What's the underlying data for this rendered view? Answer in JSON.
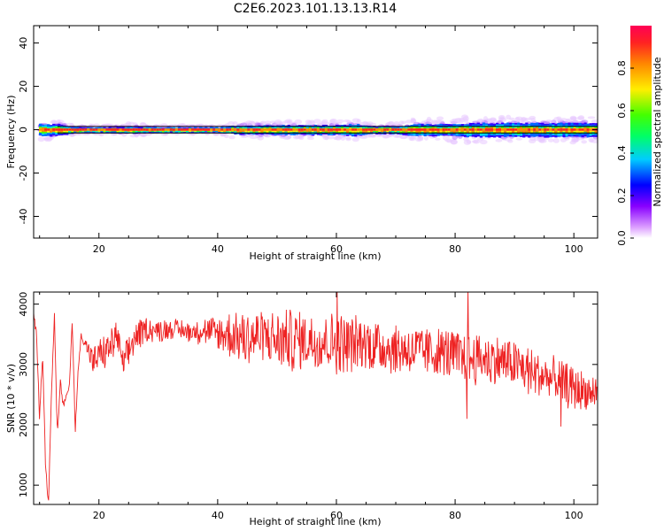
{
  "title": "C2E6.2023.101.13.13.R14",
  "colors": {
    "snr_line": "#ee2222",
    "frame": "#000000"
  },
  "chart_data": [
    {
      "type": "heatmap",
      "xlabel": "Height of straight line (km)",
      "ylabel": "Frequency (Hz)",
      "xlim": [
        9,
        104
      ],
      "ylim": [
        -50,
        48
      ],
      "x_ticks": [
        20,
        40,
        60,
        80,
        100
      ],
      "y_ticks": [
        -40,
        -20,
        0,
        20,
        40
      ],
      "x_tick_labels": [
        "20",
        "40",
        "60",
        "80",
        "100"
      ],
      "y_tick_labels": [
        "-40",
        "-20",
        "0",
        "20",
        "40"
      ],
      "colorbar": {
        "label": "Normalized spectral amplitude",
        "range": [
          0,
          1
        ],
        "ticks": [
          0.0,
          0.2,
          0.4,
          0.6,
          0.8
        ],
        "tick_labels": [
          "0.0",
          "0.2",
          "0.4",
          "0.6",
          "0.8"
        ],
        "colormap": "gist_rainbow_r"
      },
      "band": {
        "x": [
          10,
          13,
          16,
          20,
          25,
          30,
          35,
          40,
          43,
          46,
          50,
          53,
          56,
          60,
          63,
          66,
          70,
          73,
          76,
          80,
          83,
          86,
          90,
          93,
          96,
          100,
          104
        ],
        "half_width": [
          2.5,
          2.5,
          1.0,
          1.0,
          1.2,
          1.0,
          1.0,
          1.0,
          1.8,
          1.8,
          2.0,
          2.0,
          2.0,
          2.0,
          2.5,
          1.5,
          1.5,
          2.5,
          2.5,
          2.5,
          3.0,
          3.0,
          3.0,
          3.0,
          3.0,
          3.0,
          3.0
        ],
        "noise_half_width": [
          5,
          5,
          2,
          2,
          3,
          2,
          2,
          2,
          4,
          4,
          4,
          4,
          4,
          4,
          5,
          3,
          3,
          5,
          5,
          6,
          6,
          6,
          6,
          6,
          6,
          6,
          6
        ]
      },
      "lines": {
        "upper": 1.5,
        "lower": -1.5
      }
    },
    {
      "type": "line",
      "xlabel": "Height of straight line (km)",
      "ylabel": "SNR (10 * v/v)",
      "xlim": [
        9,
        104
      ],
      "ylim": [
        680,
        4200
      ],
      "x_ticks": [
        20,
        40,
        60,
        80,
        100
      ],
      "y_ticks": [
        1000,
        2000,
        3000,
        4000
      ],
      "x_tick_labels": [
        "20",
        "40",
        "60",
        "80",
        "100"
      ],
      "y_tick_labels": [
        "1000",
        "2000",
        "3000",
        "4000"
      ],
      "series": [
        {
          "x": [
            9.0,
            9.5,
            10.0,
            10.5,
            11.0,
            11.5,
            12.0,
            12.5,
            13.0,
            13.5,
            14.0,
            14.5,
            15.0,
            15.5,
            16.0,
            16.5,
            17.0,
            18.0,
            19.0,
            20.0,
            21.0,
            22.0,
            23.0,
            24.0,
            25.0,
            26.0,
            27.0,
            28.0,
            30.0,
            32.0,
            35.0,
            38.0,
            40.0,
            42.0,
            45.0,
            48.0,
            50.0,
            52.0,
            55.0,
            58.0,
            60.0,
            62.0,
            65.0,
            68.0,
            70.0,
            72.0,
            75.0,
            78.0,
            80.0,
            82.0,
            85.0,
            88.0,
            90.0,
            92.0,
            95.0,
            98.0,
            100.0,
            102.0,
            104.0
          ],
          "values": [
            3800,
            3500,
            2100,
            3200,
            1300,
            700,
            2500,
            3850,
            1800,
            2700,
            2300,
            2500,
            2600,
            3700,
            1900,
            2900,
            3500,
            3300,
            3000,
            3150,
            3200,
            3300,
            3500,
            3000,
            3200,
            3450,
            3500,
            3600,
            3550,
            3600,
            3550,
            3550,
            3500,
            3500,
            3450,
            3450,
            3400,
            3400,
            3400,
            3400,
            3350,
            3350,
            3350,
            3300,
            3250,
            3250,
            3200,
            3200,
            3150,
            3100,
            3100,
            3050,
            3000,
            2900,
            2800,
            2700,
            2600,
            2550,
            2500
          ],
          "amplitude": [
            0,
            0,
            0,
            0,
            0,
            0,
            0,
            0,
            0,
            0,
            0,
            0,
            0,
            0,
            0,
            0,
            0,
            200,
            250,
            250,
            250,
            250,
            250,
            200,
            250,
            250,
            250,
            200,
            150,
            150,
            150,
            200,
            300,
            400,
            450,
            450,
            450,
            500,
            450,
            450,
            500,
            450,
            450,
            400,
            400,
            400,
            400,
            400,
            400,
            400,
            400,
            400,
            400,
            400,
            350,
            350,
            350,
            300,
            300
          ],
          "peaks": [
            [
              60.1,
              4250
            ],
            [
              82.2,
              4250
            ],
            [
              82.0,
              2100
            ],
            [
              97.8,
              1970
            ]
          ]
        }
      ]
    }
  ]
}
